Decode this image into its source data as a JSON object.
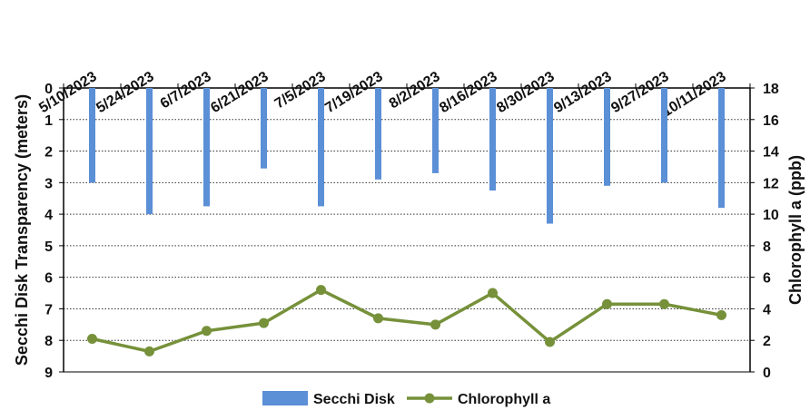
{
  "chart_data": {
    "type": "bar+line",
    "categories": [
      "5/10/2023",
      "5/24/2023",
      "6/7/2023",
      "6/21/2023",
      "7/5/2023",
      "7/19/2023",
      "8/2/2023",
      "8/16/2023",
      "8/30/2023",
      "9/13/2023",
      "9/27/2023",
      "10/11/2023"
    ],
    "series": [
      {
        "name": "Secchi Disk",
        "type": "bar",
        "axis": "left",
        "color": "#5B8FD6",
        "values": [
          3.0,
          4.0,
          3.75,
          2.55,
          3.75,
          2.9,
          2.7,
          3.25,
          4.3,
          3.1,
          3.0,
          3.8
        ]
      },
      {
        "name": "Chlorophyll a",
        "type": "line",
        "axis": "right",
        "color": "#76913A",
        "values": [
          2.1,
          1.3,
          2.6,
          3.1,
          5.2,
          3.4,
          3.0,
          5.0,
          1.9,
          4.3,
          4.3,
          3.6
        ]
      }
    ],
    "left_axis": {
      "label": "Secchi Disk Transparency (meters)",
      "min": 0,
      "max": 9,
      "step": 1,
      "reversed": true,
      "ticks": [
        "0",
        "1",
        "2",
        "3",
        "4",
        "5",
        "6",
        "7",
        "8",
        "9"
      ]
    },
    "right_axis": {
      "label": "Chlorophyll a (ppb)",
      "min": 0,
      "max": 18,
      "step": 2,
      "ticks": [
        "0",
        "2",
        "4",
        "6",
        "8",
        "10",
        "12",
        "14",
        "16",
        "18"
      ]
    },
    "category_axis_position": "top",
    "grid": "horizontal-dotted",
    "legend": {
      "position": "bottom",
      "entries": [
        "Secchi Disk",
        "Chlorophyll a"
      ]
    }
  }
}
